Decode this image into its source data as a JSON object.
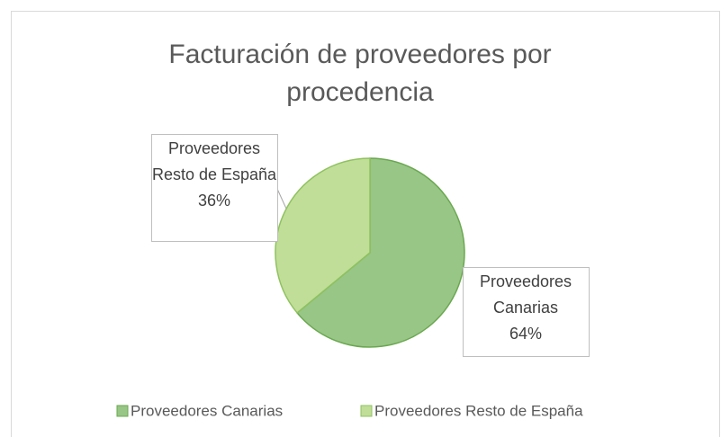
{
  "chart_data": {
    "type": "pie",
    "title": "Facturación de proveedores por procedencia",
    "categories": [
      "Proveedores Canarias",
      "Proveedores Resto de España"
    ],
    "values": [
      64,
      36
    ],
    "value_labels": [
      "64%",
      "36%"
    ],
    "colors": [
      "#98c686",
      "#c0de98"
    ],
    "legend": "bottom"
  }
}
